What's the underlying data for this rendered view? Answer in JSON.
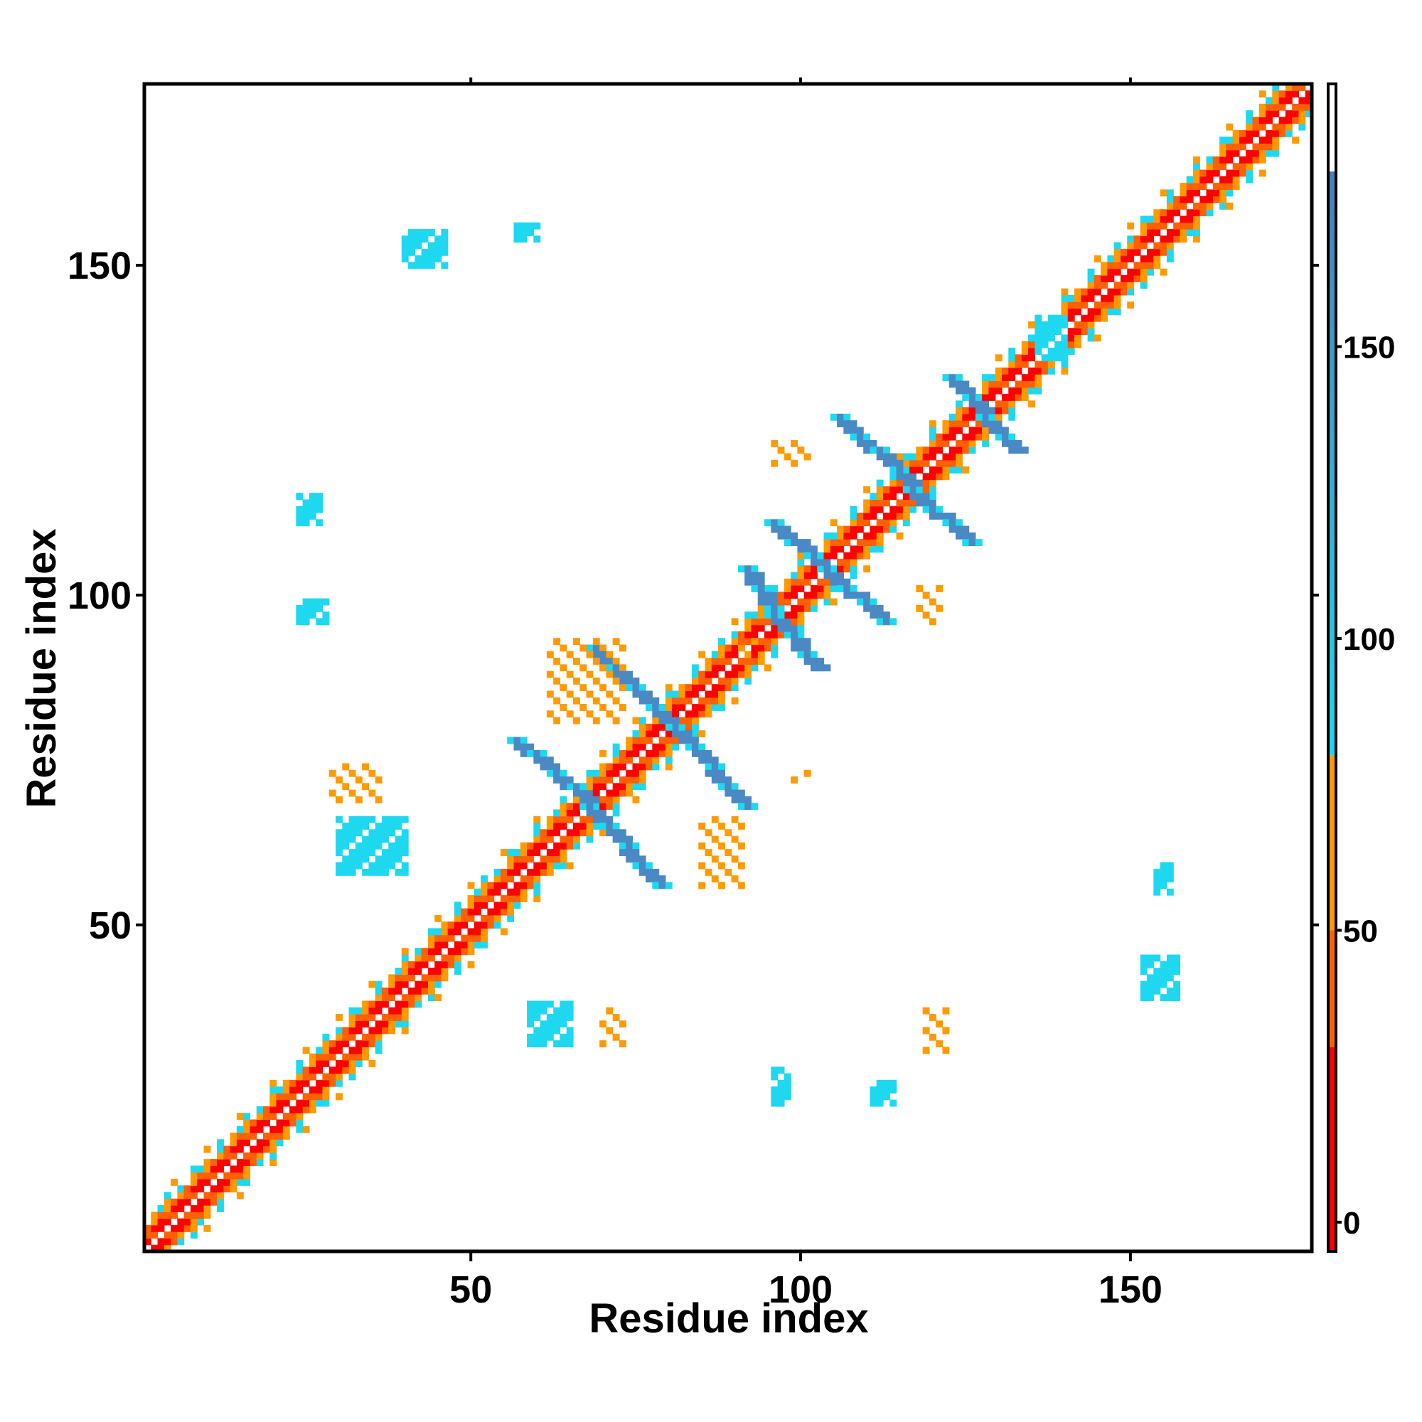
{
  "chart_data": {
    "type": "heatmap",
    "title": "",
    "xlabel": "Residue index",
    "ylabel": "Residue index",
    "xlim": [
      1,
      177
    ],
    "ylim": [
      1,
      177
    ],
    "xticks": [
      50,
      100,
      150
    ],
    "yticks": [
      50,
      100,
      150
    ],
    "colorbar": {
      "range": [
        -5,
        195
      ],
      "ticks": [
        0,
        50,
        100,
        150
      ],
      "bands": [
        {
          "from": -5,
          "to": 30,
          "color": "#ff0000"
        },
        {
          "from": 30,
          "to": 50,
          "color": "#ff6000"
        },
        {
          "from": 50,
          "to": 80,
          "color": "#ff9a00"
        },
        {
          "from": 80,
          "to": 180,
          "color": "#1ed8ef"
        },
        {
          "from": 180,
          "to": 195,
          "color": "#ffffff"
        }
      ],
      "gradient_top_color": "#4a7fb5"
    },
    "colors": {
      "diag_near": "#ff0000",
      "diag_mid": "#ff6000",
      "diag_far": "#ff9a00",
      "cyan": "#1ed8ef",
      "steel": "#4a89c4"
    },
    "diagonal_band": {
      "from": 1,
      "to": 177,
      "width": 6
    },
    "blocks": [
      {
        "x": [
          40,
          46
        ],
        "y": [
          150,
          155
        ],
        "value": 140
      },
      {
        "x": [
          57,
          60
        ],
        "y": [
          154,
          156
        ],
        "value": 100
      },
      {
        "x": [
          24,
          27
        ],
        "y": [
          111,
          115
        ],
        "value": 100
      },
      {
        "x": [
          24,
          28
        ],
        "y": [
          96,
          99
        ],
        "value": 100
      },
      {
        "x": [
          30,
          40
        ],
        "y": [
          58,
          66
        ],
        "value": 140
      },
      {
        "x": [
          29,
          36
        ],
        "y": [
          69,
          74
        ],
        "value": 60
      },
      {
        "x": [
          59,
          65
        ],
        "y": [
          32,
          38
        ],
        "value": 140
      },
      {
        "x": [
          70,
          73
        ],
        "y": [
          32,
          37
        ],
        "value": 60
      },
      {
        "x": [
          96,
          98
        ],
        "y": [
          23,
          28
        ],
        "value": 100
      },
      {
        "x": [
          111,
          114
        ],
        "y": [
          23,
          26
        ],
        "value": 100
      },
      {
        "x": [
          119,
          122
        ],
        "y": [
          31,
          37
        ],
        "value": 60
      },
      {
        "x": [
          152,
          157
        ],
        "y": [
          39,
          45
        ],
        "value": 140
      },
      {
        "x": [
          154,
          156
        ],
        "y": [
          55,
          59
        ],
        "value": 100
      },
      {
        "x": [
          99,
          101
        ],
        "y": [
          72,
          73
        ],
        "value": 60
      },
      {
        "x": [
          85,
          91
        ],
        "y": [
          56,
          66
        ],
        "value": 60
      },
      {
        "x": [
          62,
          73
        ],
        "y": [
          81,
          93
        ],
        "value": 60
      },
      {
        "x": [
          96,
          101
        ],
        "y": [
          120,
          123
        ],
        "value": 60
      },
      {
        "x": [
          118,
          121
        ],
        "y": [
          96,
          101
        ],
        "value": 60
      },
      {
        "x": [
          90,
          93
        ],
        "y": [
          91,
          93
        ],
        "value": 60
      },
      {
        "x": [
          136,
          140
        ],
        "y": [
          136,
          142
        ],
        "value": 100
      }
    ],
    "strands": [
      {
        "from": [
          57,
          78
        ],
        "to": [
          68,
          69
        ],
        "value": 140
      },
      {
        "from": [
          68,
          68
        ],
        "to": [
          79,
          56
        ],
        "value": 140
      },
      {
        "from": [
          69,
          92
        ],
        "to": [
          81,
          80
        ],
        "value": 140
      },
      {
        "from": [
          81,
          80
        ],
        "to": [
          92,
          68
        ],
        "value": 140
      },
      {
        "from": [
          92,
          104
        ],
        "to": [
          96,
          98
        ],
        "value": 140
      },
      {
        "from": [
          96,
          97
        ],
        "to": [
          103,
          89
        ],
        "value": 140
      },
      {
        "from": [
          96,
          111
        ],
        "to": [
          104,
          104
        ],
        "value": 140
      },
      {
        "from": [
          104,
          104
        ],
        "to": [
          113,
          96
        ],
        "value": 140
      },
      {
        "from": [
          106,
          127
        ],
        "to": [
          117,
          117
        ],
        "value": 140
      },
      {
        "from": [
          117,
          116
        ],
        "to": [
          126,
          108
        ],
        "value": 140
      },
      {
        "from": [
          123,
          133
        ],
        "to": [
          128,
          128
        ],
        "value": 140
      },
      {
        "from": [
          128,
          127
        ],
        "to": [
          133,
          122
        ],
        "value": 140
      }
    ]
  }
}
